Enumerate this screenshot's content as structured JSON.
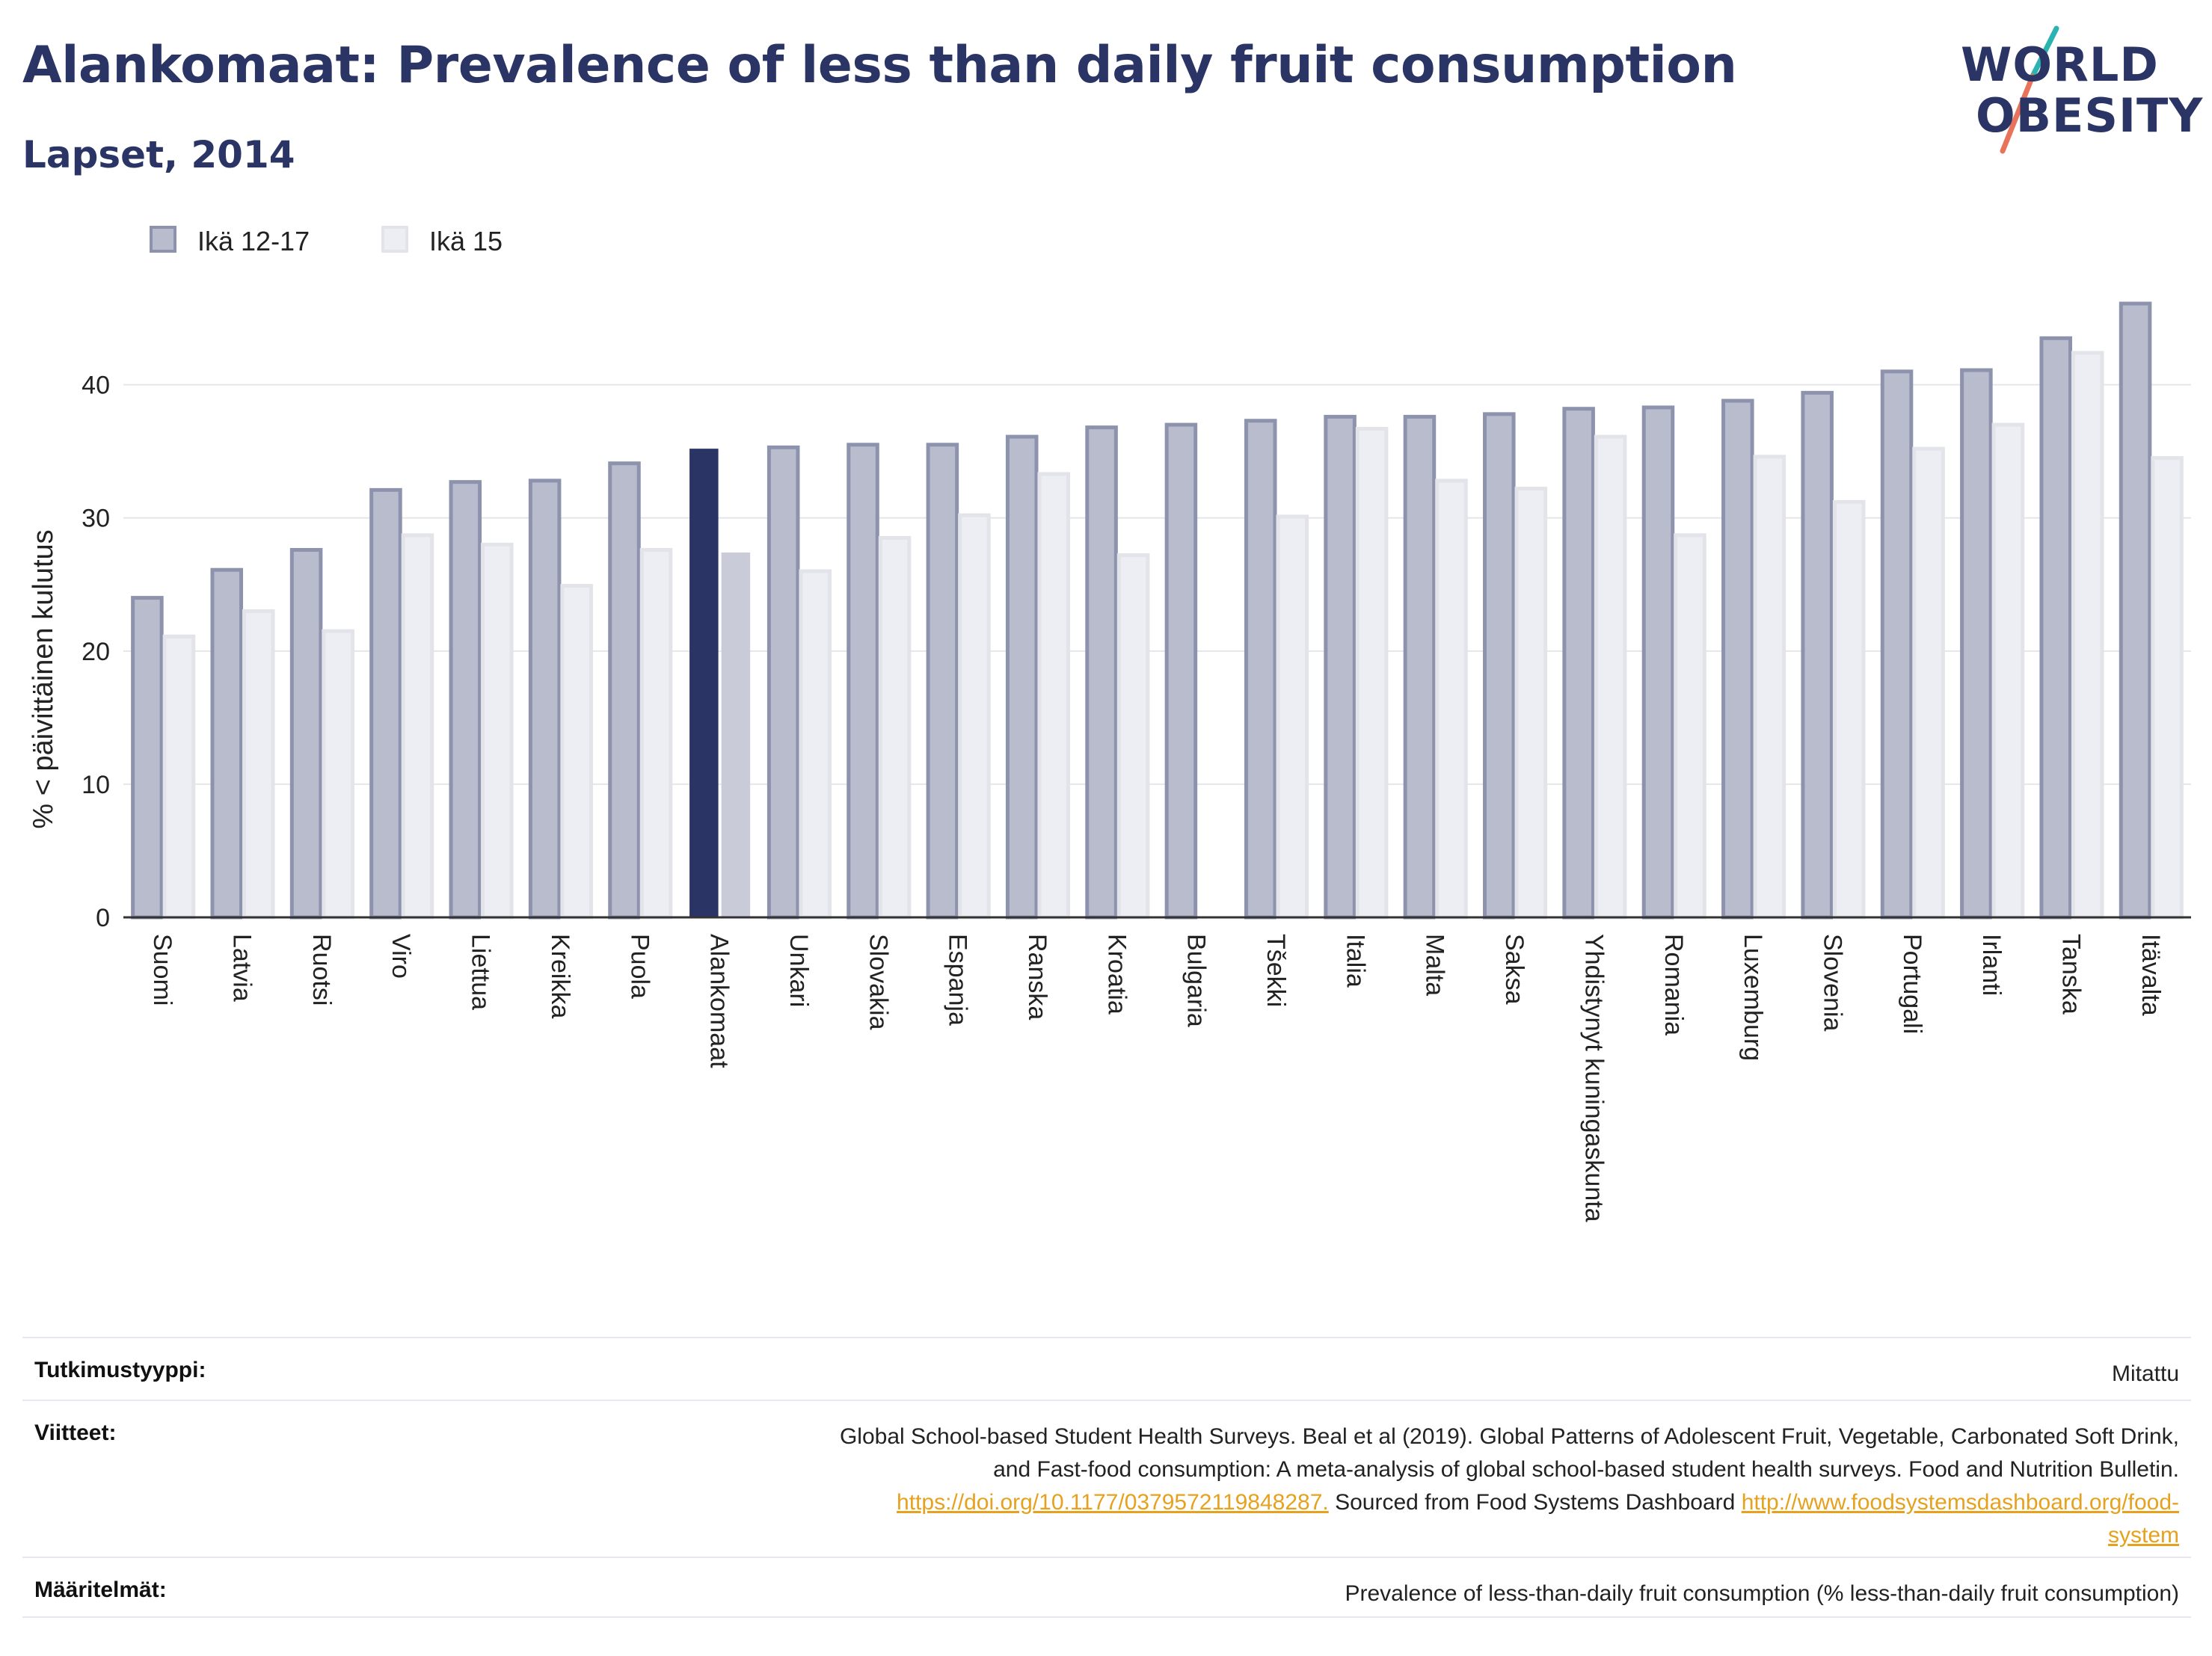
{
  "header": {
    "title": "Alankomaat: Prevalence of less than daily fruit consumption",
    "subtitle": "Lapset, 2014"
  },
  "logo": {
    "line1": "WORLD",
    "line2": "OBESITY"
  },
  "colors": {
    "series1_fill": "#b9bccd",
    "series1_stroke": "#8e93ad",
    "series2_fill": "#eceef3",
    "series2_stroke": "#e2e4ea",
    "highlight1": "#2b3565",
    "highlight2": "#c9ccd8",
    "grid": "#e6e6ea",
    "accent_teal": "#2bb3b1",
    "accent_coral": "#e8735a"
  },
  "chart_data": {
    "type": "bar",
    "ylabel": "% < päivittäinen kulutus",
    "xlabel": "",
    "ylim": [
      0,
      47
    ],
    "yticks": [
      0,
      10,
      20,
      30,
      40
    ],
    "grid": true,
    "legend_position": "top-left",
    "highlight_category": "Alankomaat",
    "categories": [
      "Suomi",
      "Latvia",
      "Ruotsi",
      "Viro",
      "Liettua",
      "Kreikka",
      "Puola",
      "Alankomaat",
      "Unkari",
      "Slovakia",
      "Espanja",
      "Ranska",
      "Kroatia",
      "Bulgaria",
      "Tšekki",
      "Italia",
      "Malta",
      "Saksa",
      "Yhdistynyt kuningaskunta",
      "Romania",
      "Luxemburg",
      "Slovenia",
      "Portugali",
      "Irlanti",
      "Tanska",
      "Itävalta"
    ],
    "series": [
      {
        "name": "Ikä 12-17",
        "values": [
          24.0,
          26.1,
          27.6,
          32.1,
          32.7,
          32.8,
          34.1,
          35.2,
          35.3,
          35.5,
          35.5,
          36.1,
          36.8,
          37.0,
          37.3,
          37.6,
          37.6,
          37.8,
          38.2,
          38.3,
          38.8,
          39.4,
          41.0,
          41.1,
          43.5,
          46.1
        ]
      },
      {
        "name": "Ikä 15",
        "values": [
          21.1,
          23.0,
          21.5,
          28.7,
          28.0,
          24.9,
          27.6,
          27.4,
          26.0,
          28.5,
          30.2,
          33.3,
          27.2,
          null,
          30.1,
          36.7,
          32.8,
          32.2,
          36.1,
          28.7,
          34.6,
          31.2,
          35.2,
          37.0,
          42.4,
          34.5
        ]
      }
    ]
  },
  "footer": {
    "rows": [
      {
        "label": "Tutkimustyyppi:",
        "lines": [
          "Mitattu"
        ]
      },
      {
        "label": "Viitteet:",
        "lines": [
          "Global School-based Student Health Surveys. Beal et al (2019). Global Patterns of Adolescent Fruit, Vegetable, Carbonated Soft Drink,",
          "and Fast-food consumption: A meta-analysis of global school-based student health surveys. Food and Nutrition Bulletin."
        ],
        "link1": "https://doi.org/10.1177/0379572119848287.",
        "mid_text": " Sourced from Food Systems Dashboard ",
        "link2a": "http://www.foodsystemsdashboard.org/food-",
        "link2b": "system"
      },
      {
        "label": "Määritelmät:",
        "lines": [
          "Prevalence of less-than-daily fruit consumption (% less-than-daily fruit consumption)"
        ]
      }
    ]
  }
}
